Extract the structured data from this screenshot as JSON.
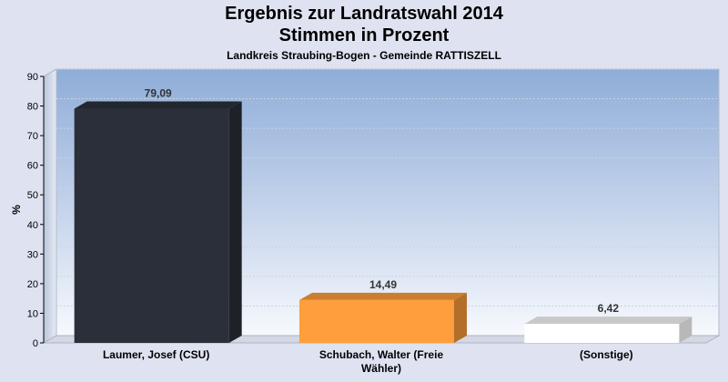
{
  "header": {
    "title_line1": "Ergebnis zur Landratswahl 2014",
    "title_line2": "Stimmen in Prozent",
    "subtitle": "Landkreis Straubing-Bogen - Gemeinde RATTISZELL"
  },
  "chart_data": {
    "type": "bar",
    "title": "Ergebnis zur Landratswahl 2014 Stimmen in Prozent",
    "subtitle": "Landkreis Straubing-Bogen - Gemeinde RATTISZELL",
    "ylabel": "%",
    "xlabel": "",
    "ylim": [
      0,
      90
    ],
    "yticks": [
      0,
      10,
      20,
      30,
      40,
      50,
      60,
      70,
      80,
      90
    ],
    "grid": true,
    "categories": [
      [
        "Laumer, Josef (CSU)"
      ],
      [
        "Schubach, Walter (Freie",
        "Wähler)"
      ],
      [
        "(Sonstige)"
      ]
    ],
    "values": [
      79.09,
      14.49,
      6.42
    ],
    "value_labels": [
      "79,09",
      "14,49",
      "6,42"
    ],
    "colors": [
      "#2b2f39",
      "#ff9e3c",
      "#ffffff"
    ]
  }
}
